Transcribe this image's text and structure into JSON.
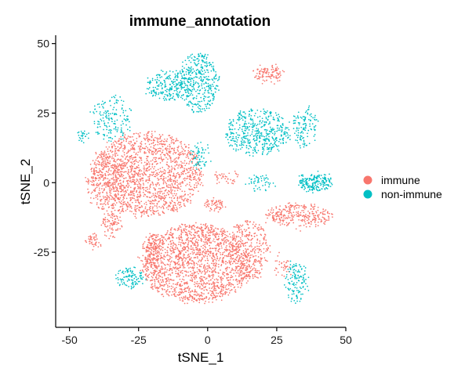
{
  "chart_data": {
    "type": "scatter",
    "title": "immune_annotation",
    "xlabel": "tSNE_1",
    "ylabel": "tSNE_2",
    "xlim": [
      -55,
      50
    ],
    "ylim": [
      -52,
      53
    ],
    "x_ticks": [
      -50,
      -25,
      0,
      25,
      50
    ],
    "x_tick_labels": [
      "-50",
      "-25",
      "0",
      "25",
      "50"
    ],
    "y_ticks": [
      -25,
      0,
      25,
      50
    ],
    "y_tick_labels": [
      "-25",
      "0",
      "25",
      "50"
    ],
    "grid": false,
    "legend_position": "right",
    "series": [
      {
        "name": "immune",
        "color": "#F8766D",
        "clusters": [
          {
            "cx": -22,
            "cy": 3,
            "rx": 20,
            "ry": 15,
            "n": 1600
          },
          {
            "cx": -36,
            "cy": 0,
            "rx": 8,
            "ry": 10,
            "n": 260
          },
          {
            "cx": -4,
            "cy": -29,
            "rx": 20,
            "ry": 14,
            "n": 1700
          },
          {
            "cx": 15,
            "cy": -24,
            "rx": 7,
            "ry": 11,
            "n": 320
          },
          {
            "cx": 33,
            "cy": -12,
            "rx": 12,
            "ry": 4,
            "n": 300
          },
          {
            "cx": -35,
            "cy": -15,
            "rx": 3.5,
            "ry": 5,
            "n": 90
          },
          {
            "cx": -20,
            "cy": -25,
            "rx": 3.5,
            "ry": 7,
            "n": 130
          },
          {
            "cx": -41,
            "cy": -21,
            "rx": 3,
            "ry": 2,
            "n": 45
          },
          {
            "cx": 22,
            "cy": 39,
            "rx": 5,
            "ry": 3,
            "n": 110
          },
          {
            "cx": 3,
            "cy": -8,
            "rx": 4,
            "ry": 1.8,
            "n": 60
          },
          {
            "cx": 27,
            "cy": -30,
            "rx": 3,
            "ry": 3.5,
            "n": 35
          },
          {
            "cx": 7,
            "cy": 2,
            "rx": 5,
            "ry": 2,
            "n": 40
          }
        ]
      },
      {
        "name": "non-immune",
        "color": "#00BFC4",
        "clusters": [
          {
            "cx": -3,
            "cy": 36,
            "rx": 7,
            "ry": 11,
            "n": 350
          },
          {
            "cx": -14,
            "cy": 35,
            "rx": 8,
            "ry": 5,
            "n": 230
          },
          {
            "cx": -35,
            "cy": 23,
            "rx": 7,
            "ry": 8,
            "n": 160
          },
          {
            "cx": -45,
            "cy": 17,
            "rx": 2,
            "ry": 1.5,
            "n": 25
          },
          {
            "cx": 18,
            "cy": 18,
            "rx": 12,
            "ry": 8,
            "n": 460
          },
          {
            "cx": 35,
            "cy": 20,
            "rx": 5,
            "ry": 7,
            "n": 120
          },
          {
            "cx": 39,
            "cy": 0,
            "rx": 6,
            "ry": 3,
            "n": 200
          },
          {
            "cx": -28,
            "cy": -34,
            "rx": 5,
            "ry": 3.5,
            "n": 110
          },
          {
            "cx": 32,
            "cy": -36,
            "rx": 4,
            "ry": 7,
            "n": 130
          },
          {
            "cx": -3,
            "cy": 10,
            "rx": 3,
            "ry": 5,
            "n": 60
          },
          {
            "cx": 19,
            "cy": 0,
            "rx": 5,
            "ry": 2.5,
            "n": 50
          }
        ]
      }
    ]
  }
}
